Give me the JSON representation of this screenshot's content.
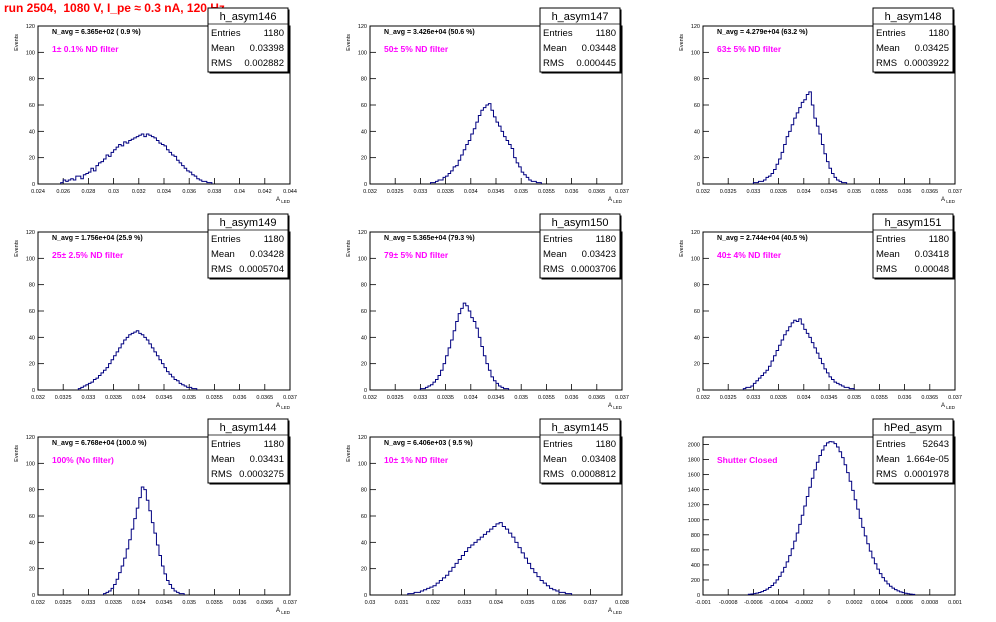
{
  "canvas_title": "run 2504,  1080 V, I_pe ≈ 0.3 nA, 120 Hz",
  "stat_labels": {
    "entries": "Entries",
    "mean": "Mean",
    "rms": "RMS"
  },
  "colors": {
    "histogram_line": "#000080",
    "annotation": "#ff00ff",
    "title": "#ff0000",
    "axis": "#000000"
  },
  "chart_data": [
    {
      "type": "histogram",
      "name": "h_asym146",
      "entries": "1180",
      "mean": "0.03398",
      "rms": "0.002882",
      "n_avg": "N_avg = 6.365e+02 ( 0.9 %)",
      "annotation": "1± 0.1% ND filter",
      "ylabel": "Events",
      "xlabel": "A_LED",
      "xlim": [
        0.024,
        0.044
      ],
      "ylim": [
        0,
        120
      ],
      "xticks": [
        "0.024",
        "0.026",
        "0.028",
        "0.03",
        "0.032",
        "0.034",
        "0.036",
        "0.038",
        "0.04",
        "0.042",
        "0.044"
      ],
      "yticks": [
        0,
        20,
        40,
        60,
        80,
        100,
        120
      ],
      "bins": {
        "start": 0.0258,
        "width": 0.0002,
        "counts": [
          1,
          3,
          2,
          3,
          4,
          3,
          6,
          6,
          4,
          7,
          8,
          9,
          12,
          10,
          14,
          16,
          17,
          19,
          22,
          21,
          24,
          26,
          28,
          30,
          29,
          32,
          31,
          33,
          34,
          35,
          36,
          37,
          38,
          36,
          38,
          37,
          36,
          35,
          33,
          31,
          30,
          29,
          26,
          24,
          22,
          21,
          18,
          16,
          14,
          12,
          10,
          9,
          7,
          6,
          4,
          3,
          2,
          2,
          1,
          1
        ]
      }
    },
    {
      "type": "histogram",
      "name": "h_asym147",
      "entries": "1180",
      "mean": "0.03448",
      "rms": "0.000445",
      "n_avg": "N_avg = 3.426e+04 (50.6 %)",
      "annotation": "50± 5% ND filter",
      "ylabel": "Events",
      "xlabel": "A_LED",
      "xlim": [
        0.032,
        0.037
      ],
      "ylim": [
        0,
        120
      ],
      "xticks": [
        "0.032",
        "0.0325",
        "0.033",
        "0.0335",
        "0.034",
        "0.0345",
        "0.035",
        "0.0355",
        "0.036",
        "0.0365",
        "0.037"
      ],
      "yticks": [
        0,
        20,
        40,
        60,
        80,
        100,
        120
      ],
      "bins": {
        "start": 0.0332,
        "width": 5e-05,
        "counts": [
          1,
          1,
          2,
          3,
          3,
          5,
          6,
          8,
          10,
          13,
          14,
          18,
          22,
          26,
          30,
          33,
          38,
          42,
          47,
          52,
          56,
          58,
          60,
          61,
          56,
          51,
          47,
          44,
          40,
          36,
          33,
          30,
          27,
          20,
          16,
          13,
          9,
          7,
          5,
          3,
          2,
          2,
          1,
          1
        ]
      }
    },
    {
      "type": "histogram",
      "name": "h_asym148",
      "entries": "1180",
      "mean": "0.03425",
      "rms": "0.0003922",
      "n_avg": "N_avg = 4.279e+04 (63.2 %)",
      "annotation": "63± 5% ND filter",
      "ylabel": "Events",
      "xlabel": "A_LED",
      "xlim": [
        0.032,
        0.037
      ],
      "ylim": [
        0,
        120
      ],
      "xticks": [
        "0.032",
        "0.0325",
        "0.033",
        "0.0335",
        "0.034",
        "0.0345",
        "0.035",
        "0.0355",
        "0.036",
        "0.0365",
        "0.037"
      ],
      "yticks": [
        0,
        20,
        40,
        60,
        80,
        100,
        120
      ],
      "bins": {
        "start": 0.033,
        "width": 5e-05,
        "counts": [
          1,
          1,
          2,
          2,
          3,
          5,
          6,
          8,
          11,
          15,
          19,
          24,
          30,
          36,
          40,
          45,
          50,
          54,
          58,
          62,
          64,
          68,
          70,
          60,
          50,
          44,
          38,
          30,
          23,
          17,
          12,
          8,
          5,
          3,
          2,
          1,
          1
        ]
      }
    },
    {
      "type": "histogram",
      "name": "h_asym149",
      "entries": "1180",
      "mean": "0.03428",
      "rms": "0.0005704",
      "n_avg": "N_avg = 1.756e+04 (25.9 %)",
      "annotation": "25± 2.5% ND filter",
      "ylabel": "Events",
      "xlabel": "A_LED",
      "xlim": [
        0.032,
        0.037
      ],
      "ylim": [
        0,
        120
      ],
      "xticks": [
        "0.032",
        "0.0325",
        "0.033",
        "0.0335",
        "0.034",
        "0.0345",
        "0.035",
        "0.0355",
        "0.036",
        "0.0365",
        "0.037"
      ],
      "yticks": [
        0,
        20,
        40,
        60,
        80,
        100,
        120
      ],
      "bins": {
        "start": 0.0328,
        "width": 5e-05,
        "counts": [
          1,
          2,
          3,
          4,
          5,
          6,
          8,
          9,
          11,
          13,
          15,
          17,
          20,
          23,
          26,
          29,
          32,
          35,
          38,
          40,
          42,
          43,
          44,
          45,
          43,
          42,
          40,
          38,
          35,
          32,
          29,
          26,
          23,
          20,
          17,
          14,
          12,
          10,
          8,
          7,
          5,
          4,
          3,
          2,
          2,
          1,
          1
        ]
      }
    },
    {
      "type": "histogram",
      "name": "h_asym150",
      "entries": "1180",
      "mean": "0.03423",
      "rms": "0.0003706",
      "n_avg": "N_avg = 5.365e+04 (79.3 %)",
      "annotation": "79± 5% ND filter",
      "ylabel": "Events",
      "xlabel": "A_LED",
      "xlim": [
        0.032,
        0.037
      ],
      "ylim": [
        0,
        120
      ],
      "xticks": [
        "0.032",
        "0.0325",
        "0.033",
        "0.0335",
        "0.034",
        "0.0345",
        "0.035",
        "0.0355",
        "0.036",
        "0.0365",
        "0.037"
      ],
      "yticks": [
        0,
        20,
        40,
        60,
        80,
        100,
        120
      ],
      "bins": {
        "start": 0.033,
        "width": 5e-05,
        "counts": [
          1,
          1,
          2,
          3,
          4,
          6,
          8,
          11,
          15,
          20,
          26,
          32,
          38,
          45,
          52,
          58,
          62,
          66,
          64,
          60,
          55,
          52,
          47,
          40,
          33,
          26,
          20,
          15,
          10,
          7,
          5,
          3,
          2,
          1,
          1
        ]
      }
    },
    {
      "type": "histogram",
      "name": "h_asym151",
      "entries": "1180",
      "mean": "0.03418",
      "rms": "0.00048",
      "n_avg": "N_avg = 2.744e+04 (40.5 %)",
      "annotation": "40± 4% ND filter",
      "ylabel": "Events",
      "xlabel": "A_LED",
      "xlim": [
        0.032,
        0.037
      ],
      "ylim": [
        0,
        120
      ],
      "xticks": [
        "0.032",
        "0.0325",
        "0.033",
        "0.0335",
        "0.034",
        "0.0345",
        "0.035",
        "0.0355",
        "0.036",
        "0.0365",
        "0.037"
      ],
      "yticks": [
        0,
        20,
        40,
        60,
        80,
        100,
        120
      ],
      "bins": {
        "start": 0.0328,
        "width": 5e-05,
        "counts": [
          1,
          2,
          2,
          3,
          5,
          7,
          9,
          11,
          13,
          15,
          18,
          22,
          26,
          30,
          34,
          38,
          42,
          45,
          48,
          51,
          53,
          52,
          54,
          50,
          46,
          43,
          40,
          36,
          32,
          28,
          24,
          20,
          16,
          13,
          10,
          8,
          6,
          5,
          4,
          3,
          2,
          2,
          1,
          1
        ]
      }
    },
    {
      "type": "histogram",
      "name": "h_asym144",
      "entries": "1180",
      "mean": "0.03431",
      "rms": "0.0003275",
      "n_avg": "N_avg = 6.768e+04 (100.0 %)",
      "annotation": "100% (No filter)",
      "ylabel": "Events",
      "xlabel": "A_LED",
      "xlim": [
        0.032,
        0.037
      ],
      "ylim": [
        0,
        120
      ],
      "xticks": [
        "0.032",
        "0.0325",
        "0.033",
        "0.0335",
        "0.034",
        "0.0345",
        "0.035",
        "0.0355",
        "0.036",
        "0.0365",
        "0.037"
      ],
      "yticks": [
        0,
        20,
        40,
        60,
        80,
        100,
        120
      ],
      "bins": {
        "start": 0.0333,
        "width": 5e-05,
        "counts": [
          1,
          2,
          3,
          5,
          8,
          12,
          17,
          22,
          28,
          35,
          42,
          50,
          58,
          66,
          74,
          82,
          80,
          72,
          64,
          55,
          47,
          38,
          30,
          22,
          16,
          11,
          8,
          5,
          3,
          2,
          1,
          1
        ]
      }
    },
    {
      "type": "histogram",
      "name": "h_asym145",
      "entries": "1180",
      "mean": "0.03408",
      "rms": "0.0008812",
      "n_avg": "N_avg = 6.406e+03 ( 9.5 %)",
      "annotation": "10± 1% ND filter",
      "ylabel": "Events",
      "xlabel": "A_LED",
      "xlim": [
        0.03,
        0.038
      ],
      "ylim": [
        0,
        120
      ],
      "xticks": [
        "0.03",
        "0.031",
        "0.032",
        "0.033",
        "0.034",
        "0.035",
        "0.036",
        "0.037",
        "0.038"
      ],
      "yticks": [
        0,
        20,
        40,
        60,
        80,
        100,
        120
      ],
      "bins": {
        "start": 0.0312,
        "width": 0.0001,
        "counts": [
          1,
          1,
          2,
          2,
          3,
          4,
          5,
          6,
          7,
          9,
          11,
          13,
          15,
          18,
          21,
          24,
          27,
          30,
          33,
          36,
          38,
          40,
          42,
          44,
          46,
          48,
          50,
          52,
          54,
          55,
          52,
          50,
          47,
          44,
          40,
          36,
          32,
          28,
          24,
          20,
          17,
          14,
          11,
          9,
          7,
          5,
          4,
          3,
          2,
          2,
          1,
          1
        ]
      }
    },
    {
      "type": "histogram",
      "name": "hPed_asym",
      "entries": "52643",
      "mean": "1.664e-05",
      "rms": "0.0001978",
      "n_avg": "",
      "annotation": "Shutter Closed",
      "ylabel": "",
      "xlabel": "",
      "xlim": [
        -0.001,
        0.001
      ],
      "ylim": [
        0,
        2100
      ],
      "xticks": [
        "-0.001",
        "-0.0008",
        "-0.0006",
        "-0.0004",
        "-0.0002",
        "0",
        "0.0002",
        "0.0004",
        "0.0006",
        "0.0008",
        "0.001"
      ],
      "yticks": [
        0,
        200,
        400,
        600,
        800,
        1000,
        1200,
        1400,
        1600,
        1800,
        2000
      ],
      "gauss": {
        "mu": 1.66e-05,
        "sigma": 0.000198,
        "amp": 2040,
        "start": -0.00064,
        "end": 0.00068,
        "width": 2e-05
      }
    }
  ]
}
